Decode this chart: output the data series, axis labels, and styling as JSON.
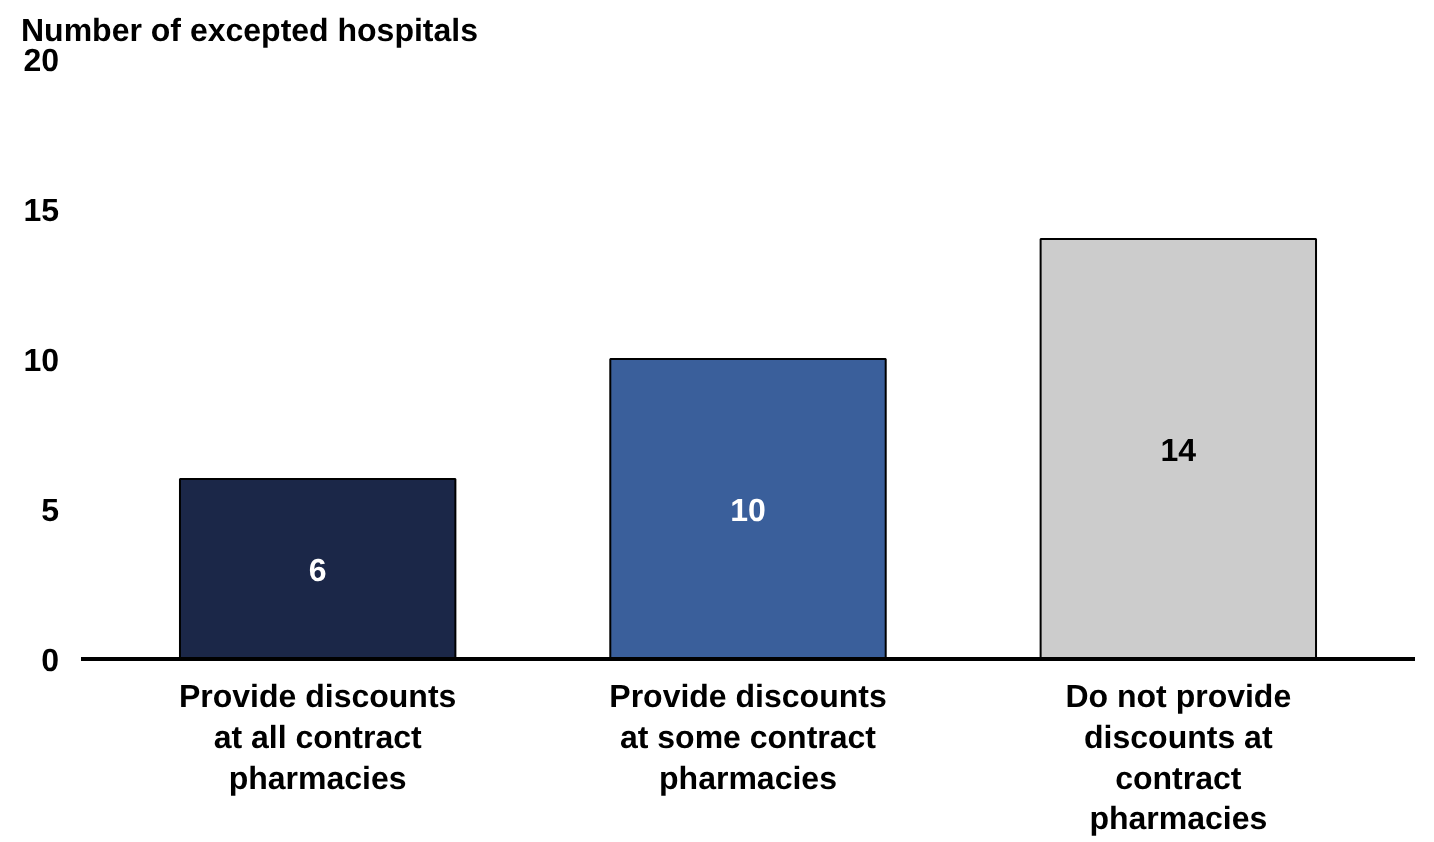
{
  "chart_data": {
    "type": "bar",
    "ylabel": "Number of excepted hospitals",
    "categories": [
      "Provide discounts at all contract pharmacies",
      "Provide discounts at some contract pharmacies",
      "Do not provide discounts at contract pharmacies"
    ],
    "values": [
      6,
      10,
      14
    ],
    "colors": [
      "#1b2748",
      "#3a5f9b",
      "#cccccc"
    ],
    "ylim": [
      0,
      20
    ],
    "yticks": [
      0,
      5,
      10,
      15,
      20
    ],
    "grid": false,
    "data_labels": true
  }
}
